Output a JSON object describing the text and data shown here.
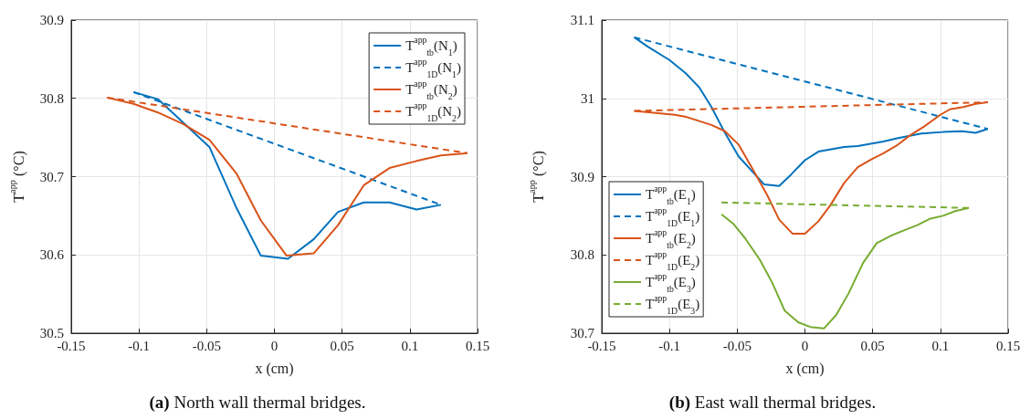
{
  "chart_data": [
    {
      "type": "line",
      "title": "(a) North wall thermal bridges.",
      "xlabel": "x (cm)",
      "ylabel": "T$^{app}$ (°C)",
      "xlim": [
        -0.15,
        0.15
      ],
      "xticks": [
        -0.15,
        -0.1,
        -0.05,
        0,
        0.05,
        0.1,
        0.15
      ],
      "ylim": [
        30.5,
        30.9
      ],
      "yticks": [
        30.5,
        30.6,
        30.7,
        30.8,
        30.9
      ],
      "grid": true,
      "legend": "top right",
      "marker": "none",
      "series": [
        {
          "name": "T$^{app}$$_{tb}$(N$_{1}$)",
          "color": "#0072bd",
          "line_style": "solid",
          "x": [
            -0.104,
            -0.086,
            -0.048,
            -0.028,
            -0.01,
            0.01,
            0.029,
            0.047,
            0.066,
            0.085,
            0.105,
            0.123
          ],
          "values": [
            30.808,
            30.799,
            30.738,
            30.66,
            30.599,
            30.595,
            30.62,
            30.655,
            30.667,
            30.667,
            30.658,
            30.664
          ]
        },
        {
          "name": "T$^{app}$$_{1D}$(N$_{1}$)",
          "color": "#0072bd",
          "line_style": "dashed",
          "x": [
            -0.104,
            0.123
          ],
          "values": [
            30.808,
            30.664
          ]
        },
        {
          "name": "T$^{app}$$_{tb}$(N$_{2}$)",
          "color": "#d95319",
          "line_style": "solid",
          "x": [
            -0.1235,
            -0.104,
            -0.086,
            -0.067,
            -0.048,
            -0.028,
            -0.01,
            0.009,
            0.029,
            0.047,
            0.066,
            0.085,
            0.105,
            0.123,
            0.1425
          ],
          "values": [
            30.801,
            30.793,
            30.782,
            30.767,
            30.747,
            30.704,
            30.644,
            30.599,
            30.602,
            30.638,
            30.689,
            30.711,
            30.72,
            30.727,
            30.73
          ]
        },
        {
          "name": "T$^{app}$$_{1D}$(N$_{2}$)",
          "color": "#d95319",
          "line_style": "dashed",
          "x": [
            -0.1235,
            0.1425
          ],
          "values": [
            30.801,
            30.73
          ]
        }
      ]
    },
    {
      "type": "line",
      "title": "(b) East wall thermal bridges.",
      "xlabel": "x (cm)",
      "ylabel": "T$^{app}$ (°C)",
      "xlim": [
        -0.15,
        0.15
      ],
      "xticks": [
        -0.15,
        -0.1,
        -0.05,
        0,
        0.05,
        0.1,
        0.15
      ],
      "ylim": [
        30.7,
        31.1
      ],
      "yticks": [
        30.7,
        30.8,
        30.9,
        31,
        31.1
      ],
      "grid": true,
      "legend": "bottom left",
      "marker": "none",
      "series": [
        {
          "name": "T$^{app}$$_{tb}$(E$_{1}$)",
          "color": "#0072bd",
          "line_style": "solid",
          "x": [
            -0.126,
            -0.116,
            -0.1,
            -0.088,
            -0.078,
            -0.069,
            -0.06,
            -0.049,
            -0.037,
            -0.03,
            -0.019,
            -0.01,
            0.0,
            0.01,
            0.029,
            0.039,
            0.058,
            0.068,
            0.086,
            0.102,
            0.116,
            0.126,
            0.135
          ],
          "values": [
            31.078,
            31.066,
            31.049,
            31.032,
            31.014,
            30.989,
            30.959,
            30.926,
            30.903,
            30.89,
            30.888,
            30.903,
            30.921,
            30.932,
            30.938,
            30.939,
            30.945,
            30.949,
            30.955,
            30.957,
            30.958,
            30.956,
            30.961
          ]
        },
        {
          "name": "T$^{app}$$_{1D}$(E$_{1}$)",
          "color": "#0072bd",
          "line_style": "dashed",
          "x": [
            -0.126,
            0.135
          ],
          "values": [
            31.078,
            30.961
          ]
        },
        {
          "name": "T$^{app}$$_{tb}$(E$_{2}$)",
          "color": "#d95319",
          "line_style": "solid",
          "x": [
            -0.126,
            -0.1136,
            -0.096,
            -0.087,
            -0.078,
            -0.069,
            -0.059,
            -0.049,
            -0.04,
            -0.028,
            -0.019,
            -0.009,
            0.0,
            0.01,
            0.019,
            0.029,
            0.039,
            0.049,
            0.058,
            0.068,
            0.077,
            0.088,
            0.1,
            0.107,
            0.117,
            0.126,
            0.135
          ],
          "values": [
            30.984,
            30.982,
            30.979,
            30.976,
            30.971,
            30.966,
            30.958,
            30.941,
            30.914,
            30.877,
            30.845,
            30.827,
            30.827,
            30.843,
            30.864,
            30.892,
            30.912,
            30.922,
            30.93,
            30.94,
            30.952,
            30.964,
            30.979,
            30.986,
            30.989,
            30.993,
            30.995
          ]
        },
        {
          "name": "T$^{app}$$_{1D}$(E$_{2}$)",
          "color": "#d95319",
          "line_style": "dashed",
          "x": [
            -0.126,
            0.135
          ],
          "values": [
            30.984,
            30.995
          ]
        },
        {
          "name": "T$^{app}$$_{tb}$(E$_{3}$)",
          "color": "#77ac30",
          "line_style": "solid",
          "x": [
            -0.0616,
            -0.053,
            -0.044,
            -0.033,
            -0.024,
            -0.015,
            -0.005,
            0.004,
            0.014,
            0.023,
            0.032,
            0.043,
            0.053,
            0.064,
            0.074,
            0.083,
            0.092,
            0.102,
            0.111,
            0.121
          ],
          "values": [
            30.852,
            30.84,
            30.821,
            30.793,
            30.764,
            30.729,
            30.714,
            30.708,
            30.706,
            30.723,
            30.75,
            30.79,
            30.815,
            30.825,
            30.832,
            30.838,
            30.846,
            30.85,
            30.856,
            30.86
          ]
        },
        {
          "name": "T$^{app}$$_{1D}$(E$_{3}$)",
          "color": "#77ac30",
          "line_style": "dashed",
          "x": [
            -0.0616,
            0.121
          ],
          "values": [
            30.867,
            30.86
          ]
        }
      ]
    }
  ]
}
